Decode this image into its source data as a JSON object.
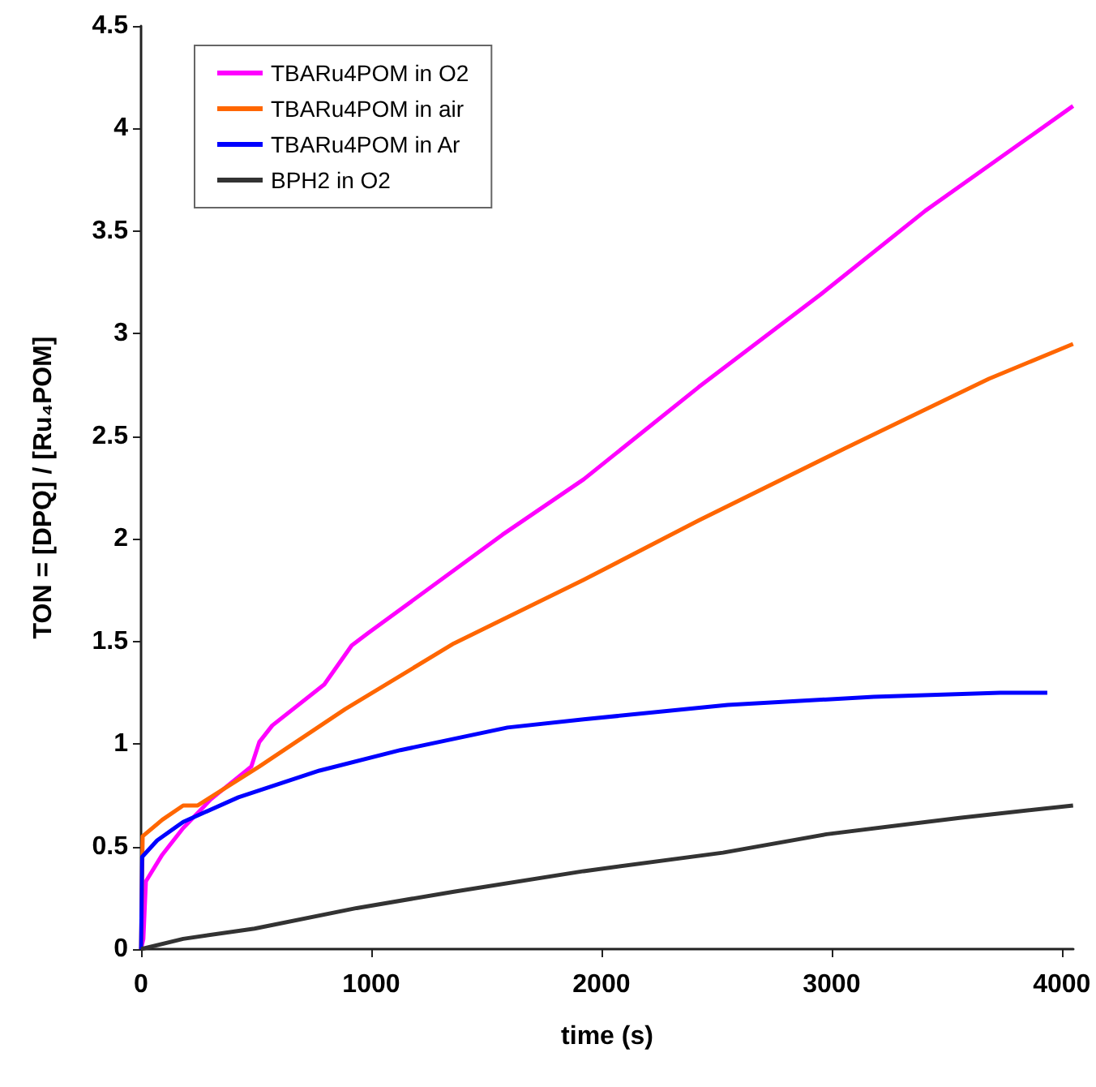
{
  "chart_data": {
    "type": "line",
    "xlabel": "time (s)",
    "ylabel": "TON = [DPQ] / [Ru₄POM]",
    "xlim": [
      0,
      4050
    ],
    "xticks": [
      0,
      1000,
      2000,
      3000,
      4000
    ],
    "ylim": [
      0,
      4.5
    ],
    "yticks": [
      0,
      0.5,
      1,
      1.5,
      2,
      2.5,
      3,
      3.5,
      4,
      4.5
    ],
    "grid": false,
    "legend": "top left",
    "marker": "none",
    "line_style": "solid",
    "series": [
      {
        "name": "TBARu4POM in O2",
        "color": "#ff00ff",
        "x": [
          0,
          10,
          21,
          92,
          183,
          303,
          479,
          514,
          570,
          796,
          915,
          986,
          1570,
          1923,
          2423,
          2951,
          3408,
          4049
        ],
        "values": [
          0,
          0.05,
          0.33,
          0.46,
          0.59,
          0.73,
          0.89,
          1.01,
          1.09,
          1.29,
          1.48,
          1.54,
          2.02,
          2.29,
          2.74,
          3.19,
          3.6,
          4.11
        ]
      },
      {
        "name": "TBARu4POM in air",
        "color": "#ff6600",
        "x": [
          0,
          7,
          92,
          183,
          246,
          373,
          514,
          887,
          1359,
          1923,
          2423,
          3056,
          3683,
          4049
        ],
        "values": [
          0,
          0.55,
          0.63,
          0.7,
          0.7,
          0.79,
          0.89,
          1.17,
          1.49,
          1.8,
          2.09,
          2.44,
          2.78,
          2.95
        ]
      },
      {
        "name": "TBARu4POM in Ar",
        "color": "#0000ff",
        "x": [
          0,
          5,
          70,
          183,
          423,
          775,
          1127,
          1592,
          1923,
          2549,
          3183,
          3732,
          3937
        ],
        "values": [
          0,
          0.45,
          0.53,
          0.62,
          0.74,
          0.87,
          0.97,
          1.08,
          1.12,
          1.19,
          1.23,
          1.25,
          1.25
        ]
      },
      {
        "name": "BPH2 in O2",
        "color": "#333333",
        "x": [
          0,
          183,
          493,
          937,
          1359,
          1923,
          2528,
          2979,
          3556,
          4049
        ],
        "values": [
          0,
          0.05,
          0.1,
          0.2,
          0.28,
          0.38,
          0.47,
          0.56,
          0.64,
          0.7
        ]
      }
    ]
  }
}
